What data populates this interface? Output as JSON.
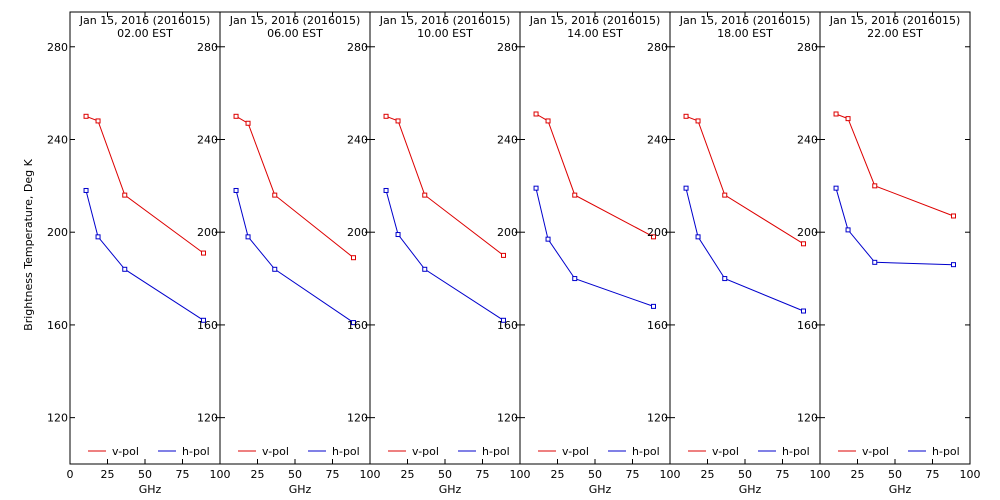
{
  "ylabel": "Brightness Temperature, Deg K",
  "chart_data": [
    {
      "type": "line",
      "title": "Jan 15, 2016 (2016015)",
      "subtitle": "02.00 EST",
      "xlabel": "GHz",
      "xlim": [
        0,
        100
      ],
      "ylim": [
        100,
        295
      ],
      "x": [
        10.7,
        18.7,
        36.5,
        89.0
      ],
      "series": [
        {
          "name": "v-pol",
          "color": "#dd0000",
          "values": [
            250,
            248,
            216,
            191
          ]
        },
        {
          "name": "h-pol",
          "color": "#0000cc",
          "values": [
            218,
            198,
            184,
            162
          ]
        }
      ]
    },
    {
      "type": "line",
      "title": "Jan 15, 2016 (2016015)",
      "subtitle": "06.00 EST",
      "xlabel": "GHz",
      "xlim": [
        0,
        100
      ],
      "ylim": [
        100,
        295
      ],
      "x": [
        10.7,
        18.7,
        36.5,
        89.0
      ],
      "series": [
        {
          "name": "v-pol",
          "color": "#dd0000",
          "values": [
            250,
            247,
            216,
            189
          ]
        },
        {
          "name": "h-pol",
          "color": "#0000cc",
          "values": [
            218,
            198,
            184,
            161
          ]
        }
      ]
    },
    {
      "type": "line",
      "title": "Jan 15, 2016 (2016015)",
      "subtitle": "10.00 EST",
      "xlabel": "GHz",
      "xlim": [
        0,
        100
      ],
      "ylim": [
        100,
        295
      ],
      "x": [
        10.7,
        18.7,
        36.5,
        89.0
      ],
      "series": [
        {
          "name": "v-pol",
          "color": "#dd0000",
          "values": [
            250,
            248,
            216,
            190
          ]
        },
        {
          "name": "h-pol",
          "color": "#0000cc",
          "values": [
            218,
            199,
            184,
            162
          ]
        }
      ]
    },
    {
      "type": "line",
      "title": "Jan 15, 2016 (2016015)",
      "subtitle": "14.00 EST",
      "xlabel": "GHz",
      "xlim": [
        0,
        100
      ],
      "ylim": [
        100,
        295
      ],
      "x": [
        10.7,
        18.7,
        36.5,
        89.0
      ],
      "series": [
        {
          "name": "v-pol",
          "color": "#dd0000",
          "values": [
            251,
            248,
            216,
            198
          ]
        },
        {
          "name": "h-pol",
          "color": "#0000cc",
          "values": [
            219,
            197,
            180,
            168
          ]
        }
      ]
    },
    {
      "type": "line",
      "title": "Jan 15, 2016 (2016015)",
      "subtitle": "18.00 EST",
      "xlabel": "GHz",
      "xlim": [
        0,
        100
      ],
      "ylim": [
        100,
        295
      ],
      "x": [
        10.7,
        18.7,
        36.5,
        89.0
      ],
      "series": [
        {
          "name": "v-pol",
          "color": "#dd0000",
          "values": [
            250,
            248,
            216,
            195
          ]
        },
        {
          "name": "h-pol",
          "color": "#0000cc",
          "values": [
            219,
            198,
            180,
            166
          ]
        }
      ]
    },
    {
      "type": "line",
      "title": "Jan 15, 2016 (2016015)",
      "subtitle": "22.00 EST",
      "xlabel": "GHz",
      "xlim": [
        0,
        100
      ],
      "ylim": [
        100,
        295
      ],
      "x": [
        10.7,
        18.7,
        36.5,
        89.0
      ],
      "series": [
        {
          "name": "v-pol",
          "color": "#dd0000",
          "values": [
            251,
            249,
            220,
            207
          ]
        },
        {
          "name": "h-pol",
          "color": "#0000cc",
          "values": [
            219,
            201,
            187,
            186
          ]
        }
      ]
    }
  ],
  "panel_axes": [
    {
      "xticks": [
        "0",
        "25",
        "50",
        "75",
        "100"
      ],
      "yticks": [
        "120",
        "160",
        "200",
        "240",
        "280"
      ]
    },
    {
      "xticks": [
        "25",
        "50",
        "75",
        "100"
      ],
      "yticks": [
        "120",
        "160",
        "200",
        "240",
        "280"
      ]
    },
    {
      "xticks": [
        "25",
        "50",
        "75",
        "100"
      ],
      "yticks": [
        "120",
        "160",
        "200",
        "240",
        "280"
      ]
    },
    {
      "xticks": [
        "25",
        "50",
        "75",
        "100"
      ],
      "yticks": [
        "120",
        "160",
        "200",
        "240",
        "280"
      ]
    },
    {
      "xticks": [
        "25",
        "50",
        "75",
        "100"
      ],
      "yticks": [
        "120",
        "160",
        "200",
        "240",
        "280"
      ]
    },
    {
      "xticks": [
        "25",
        "50",
        "75",
        "100"
      ],
      "yticks": [
        "120",
        "160",
        "200",
        "240",
        "280"
      ]
    }
  ]
}
